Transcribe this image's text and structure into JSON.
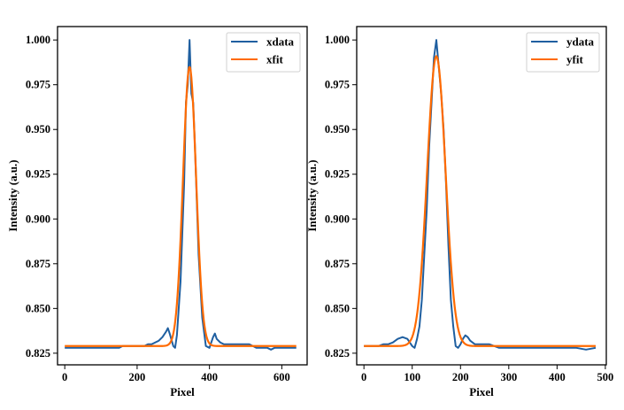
{
  "chart_data": [
    {
      "type": "line",
      "xlabel": "Pixel",
      "ylabel": "Intensity (a.u.)",
      "xlim": [
        -20,
        670
      ],
      "ylim": [
        0.8185,
        1.0075
      ],
      "xticks": [
        0,
        200,
        400,
        600
      ],
      "yticks": [
        0.825,
        0.85,
        0.875,
        0.9,
        0.925,
        0.95,
        0.975,
        1.0
      ],
      "ytick_labels": [
        "0.825",
        "0.850",
        "0.875",
        "0.900",
        "0.925",
        "0.950",
        "0.975",
        "1.000"
      ],
      "legend_position": "top-right",
      "grid": false,
      "series": [
        {
          "name": "xdata",
          "color": "#1f5fa0",
          "x": [
            0,
            10,
            20,
            30,
            40,
            50,
            60,
            70,
            80,
            90,
            100,
            110,
            120,
            130,
            140,
            150,
            160,
            170,
            180,
            190,
            200,
            210,
            220,
            230,
            240,
            250,
            260,
            270,
            280,
            285,
            290,
            300,
            305,
            310,
            320,
            330,
            335,
            340,
            345,
            350,
            355,
            360,
            370,
            380,
            390,
            400,
            410,
            415,
            420,
            430,
            440,
            450,
            460,
            470,
            480,
            490,
            500,
            510,
            520,
            530,
            540,
            550,
            560,
            570,
            580,
            590,
            600,
            610,
            620,
            630,
            640
          ],
          "y": [
            0.828,
            0.828,
            0.828,
            0.828,
            0.828,
            0.828,
            0.828,
            0.828,
            0.828,
            0.828,
            0.828,
            0.828,
            0.828,
            0.828,
            0.828,
            0.828,
            0.829,
            0.829,
            0.829,
            0.829,
            0.829,
            0.829,
            0.829,
            0.83,
            0.83,
            0.831,
            0.832,
            0.834,
            0.837,
            0.839,
            0.836,
            0.829,
            0.828,
            0.835,
            0.865,
            0.92,
            0.965,
            0.975,
            1.0,
            0.97,
            0.965,
            0.94,
            0.88,
            0.845,
            0.829,
            0.828,
            0.834,
            0.836,
            0.833,
            0.831,
            0.83,
            0.83,
            0.83,
            0.83,
            0.83,
            0.83,
            0.83,
            0.83,
            0.829,
            0.828,
            0.828,
            0.828,
            0.828,
            0.827,
            0.828,
            0.828,
            0.828,
            0.828,
            0.828,
            0.828,
            0.828
          ]
        },
        {
          "name": "xfit",
          "color": "#ff6a00",
          "model": "gaussian",
          "baseline": 0.829,
          "amplitude": 0.156,
          "center": 345,
          "sigma": 18,
          "x_range": [
            0,
            640
          ]
        }
      ]
    },
    {
      "type": "line",
      "xlabel": "Pixel",
      "ylabel": "Intensity (a.u.)",
      "xlim": [
        -15,
        502
      ],
      "ylim": [
        0.8185,
        1.0075
      ],
      "xticks": [
        0,
        100,
        200,
        300,
        400,
        500
      ],
      "yticks": [
        0.825,
        0.85,
        0.875,
        0.9,
        0.925,
        0.95,
        0.975,
        1.0
      ],
      "ytick_labels": [
        "0.825",
        "0.850",
        "0.875",
        "0.900",
        "0.925",
        "0.950",
        "0.975",
        "1.000"
      ],
      "legend_position": "top-right",
      "grid": false,
      "series": [
        {
          "name": "ydata",
          "color": "#1f5fa0",
          "x": [
            0,
            10,
            20,
            30,
            40,
            50,
            60,
            70,
            80,
            90,
            100,
            105,
            110,
            115,
            120,
            125,
            130,
            135,
            140,
            145,
            150,
            155,
            160,
            165,
            170,
            175,
            180,
            185,
            190,
            195,
            200,
            205,
            210,
            215,
            220,
            230,
            240,
            250,
            260,
            270,
            280,
            300,
            320,
            340,
            360,
            380,
            400,
            420,
            440,
            460,
            480
          ],
          "y": [
            0.829,
            0.829,
            0.829,
            0.829,
            0.83,
            0.83,
            0.831,
            0.833,
            0.834,
            0.833,
            0.829,
            0.828,
            0.833,
            0.84,
            0.855,
            0.88,
            0.905,
            0.94,
            0.965,
            0.99,
            1.0,
            0.985,
            0.97,
            0.95,
            0.92,
            0.885,
            0.855,
            0.84,
            0.829,
            0.828,
            0.83,
            0.833,
            0.835,
            0.834,
            0.832,
            0.83,
            0.83,
            0.83,
            0.83,
            0.829,
            0.828,
            0.828,
            0.828,
            0.828,
            0.828,
            0.828,
            0.828,
            0.828,
            0.828,
            0.827,
            0.828
          ]
        },
        {
          "name": "yfit",
          "color": "#ff6a00",
          "model": "gaussian",
          "baseline": 0.829,
          "amplitude": 0.162,
          "center": 150,
          "sigma": 19,
          "x_range": [
            0,
            480
          ]
        }
      ]
    }
  ]
}
